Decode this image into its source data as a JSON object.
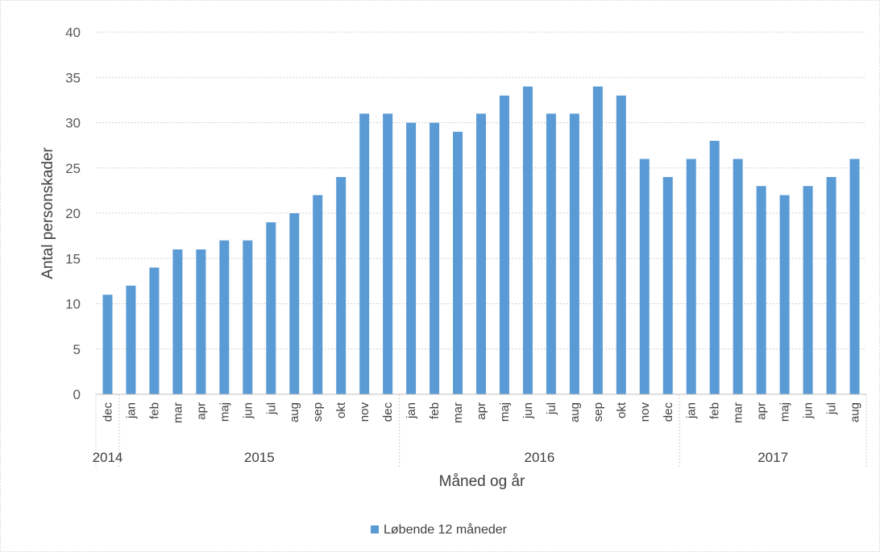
{
  "chart_data": {
    "type": "bar",
    "xlabel": "Måned og år",
    "ylabel": "Antal personskader",
    "ylim": [
      0,
      40
    ],
    "yticks": [
      0,
      5,
      10,
      15,
      20,
      25,
      30,
      35,
      40
    ],
    "grid": true,
    "legend_position": "bottom",
    "categories": [
      "dec",
      "jan",
      "feb",
      "mar",
      "apr",
      "maj",
      "jun",
      "jul",
      "aug",
      "sep",
      "okt",
      "nov",
      "dec",
      "jan",
      "feb",
      "mar",
      "apr",
      "maj",
      "jun",
      "jul",
      "aug",
      "sep",
      "okt",
      "nov",
      "dec",
      "jan",
      "feb",
      "mar",
      "apr",
      "maj",
      "jun",
      "jul",
      "aug"
    ],
    "year_groups": [
      {
        "label": "2014",
        "start": 0,
        "end": 0
      },
      {
        "label": "2015",
        "start": 1,
        "end": 12
      },
      {
        "label": "2016",
        "start": 13,
        "end": 24
      },
      {
        "label": "2017",
        "start": 25,
        "end": 32
      }
    ],
    "series": [
      {
        "name": "Løbende 12 måneder",
        "color": "#5b9bd5",
        "values": [
          11,
          12,
          14,
          16,
          16,
          17,
          17,
          19,
          20,
          22,
          24,
          31,
          31,
          30,
          30,
          29,
          31,
          33,
          34,
          31,
          31,
          34,
          33,
          26,
          24,
          26,
          28,
          26,
          23,
          22,
          23,
          24,
          26
        ]
      }
    ]
  }
}
